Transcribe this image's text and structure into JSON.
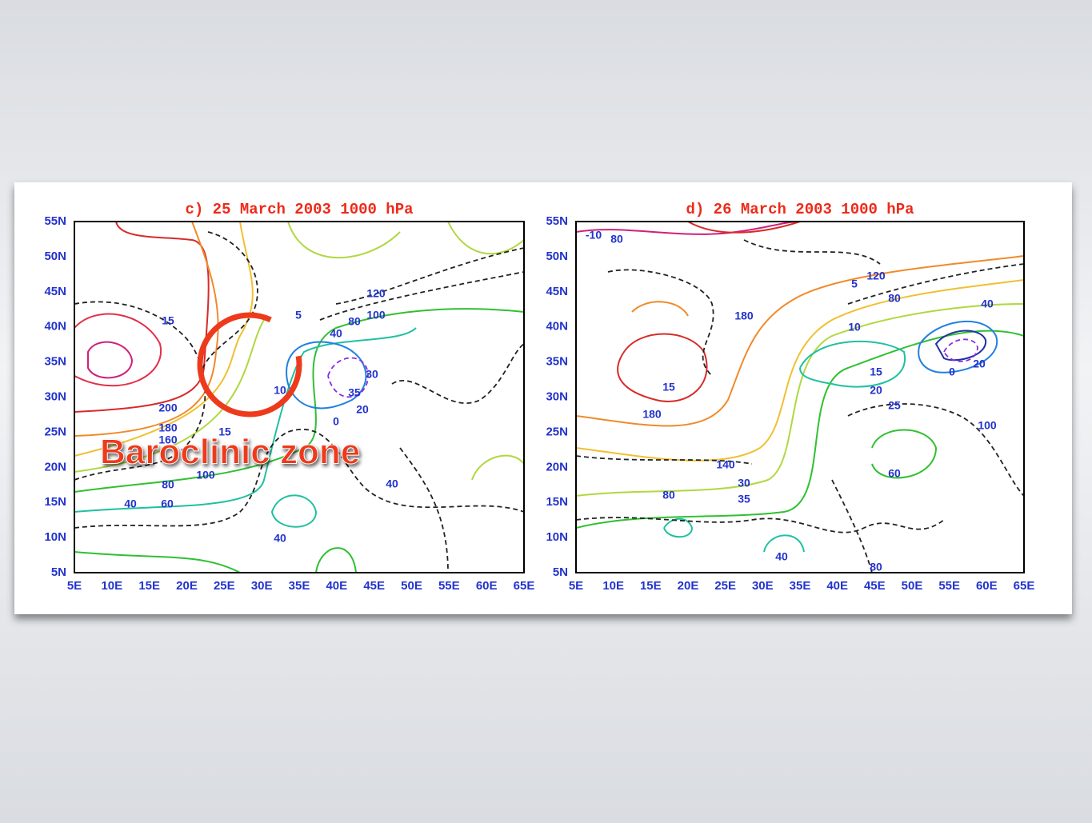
{
  "annotation": "Baroclinic zone",
  "panels": [
    {
      "title": "c) 25 March  2003   1000 hPa",
      "lat_labels": [
        "55N",
        "50N",
        "45N",
        "40N",
        "35N",
        "30N",
        "25N",
        "20N",
        "15N",
        "10N",
        "5N"
      ],
      "lon_labels": [
        "5E",
        "10E",
        "15E",
        "20E",
        "25E",
        "30E",
        "35E",
        "40E",
        "45E",
        "50E",
        "55E",
        "60E",
        "65E"
      ],
      "contour_labels": [
        "15",
        "200",
        "180",
        "160",
        "15",
        "100",
        "80",
        "40",
        "60",
        "5",
        "10",
        "120",
        "100",
        "80",
        "40",
        "30",
        "35",
        "20",
        "0",
        "40",
        "40"
      ]
    },
    {
      "title": "d) 26 March  2003   1000 hPa",
      "lat_labels": [
        "55N",
        "50N",
        "45N",
        "40N",
        "35N",
        "30N",
        "25N",
        "20N",
        "15N",
        "10N",
        "5N"
      ],
      "lon_labels": [
        "5E",
        "10E",
        "15E",
        "20E",
        "25E",
        "30E",
        "35E",
        "40E",
        "45E",
        "50E",
        "55E",
        "60E",
        "65E"
      ],
      "contour_labels": [
        "-10",
        "80",
        "180",
        "15",
        "180",
        "140",
        "30",
        "35",
        "80",
        "40",
        "80",
        "5",
        "120",
        "80",
        "10",
        "15",
        "20",
        "25",
        "40",
        "20",
        "0",
        "100",
        "60"
      ]
    }
  ]
}
